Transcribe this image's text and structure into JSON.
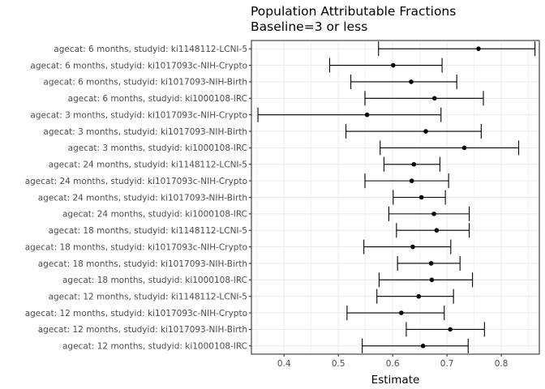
{
  "chart_data": {
    "type": "scatter",
    "subtype": "point-range",
    "orientation": "horizontal",
    "title": "Population Attributable Fractions",
    "subtitle": "Baseline=3 or less",
    "xlabel": "Estimate",
    "ylabel": "",
    "xlim": [
      0.34,
      0.87
    ],
    "xticks": [
      0.4,
      0.5,
      0.6,
      0.7,
      0.8
    ],
    "xtick_labels": [
      "0.4",
      "0.5",
      "0.6",
      "0.7",
      "0.8"
    ],
    "grid": true,
    "legend": "none",
    "colors": {
      "point": "#000000",
      "errorbar": "#000000",
      "grid": "#ebebeb",
      "panel_border": "#333333"
    },
    "categories": [
      "agecat: 6 months, studyid: ki1148112-LCNI-5",
      "agecat: 6 months, studyid: ki1017093c-NIH-Crypto",
      "agecat: 6 months, studyid: ki1017093-NIH-Birth",
      "agecat: 6 months, studyid: ki1000108-IRC",
      "agecat: 3 months, studyid: ki1017093c-NIH-Crypto",
      "agecat: 3 months, studyid: ki1017093-NIH-Birth",
      "agecat: 3 months, studyid: ki1000108-IRC",
      "agecat: 24 months, studyid: ki1148112-LCNI-5",
      "agecat: 24 months, studyid: ki1017093c-NIH-Crypto",
      "agecat: 24 months, studyid: ki1017093-NIH-Birth",
      "agecat: 24 months, studyid: ki1000108-IRC",
      "agecat: 18 months, studyid: ki1148112-LCNI-5",
      "agecat: 18 months, studyid: ki1017093c-NIH-Crypto",
      "agecat: 18 months, studyid: ki1017093-NIH-Birth",
      "agecat: 18 months, studyid: ki1000108-IRC",
      "agecat: 12 months, studyid: ki1148112-LCNI-5",
      "agecat: 12 months, studyid: ki1017093c-NIH-Crypto",
      "agecat: 12 months, studyid: ki1017093-NIH-Birth",
      "agecat: 12 months, studyid: ki1000108-IRC"
    ],
    "estimate": [
      0.758,
      0.601,
      0.634,
      0.677,
      0.553,
      0.661,
      0.732,
      0.639,
      0.635,
      0.653,
      0.676,
      0.681,
      0.637,
      0.671,
      0.672,
      0.648,
      0.616,
      0.706,
      0.656
    ],
    "lower": [
      0.574,
      0.484,
      0.523,
      0.549,
      0.352,
      0.514,
      0.577,
      0.584,
      0.549,
      0.601,
      0.593,
      0.607,
      0.547,
      0.609,
      0.575,
      0.571,
      0.516,
      0.625,
      0.544
    ],
    "upper": [
      0.862,
      0.691,
      0.718,
      0.767,
      0.689,
      0.763,
      0.832,
      0.687,
      0.703,
      0.697,
      0.741,
      0.741,
      0.707,
      0.724,
      0.747,
      0.712,
      0.695,
      0.769,
      0.739
    ]
  }
}
